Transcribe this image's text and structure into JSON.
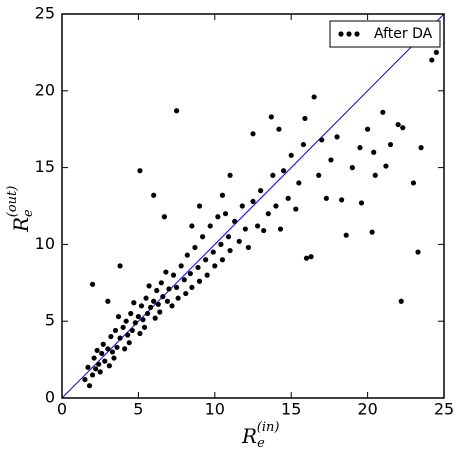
{
  "chart_data": {
    "type": "scatter",
    "xlabel": {
      "main": "R",
      "sub": "e",
      "sup": "(in)"
    },
    "ylabel": {
      "main": "R",
      "sub": "e",
      "sup": "(out)"
    },
    "xlim": [
      0,
      25
    ],
    "ylim": [
      0,
      25
    ],
    "xticks": [
      0,
      5,
      10,
      15,
      20,
      25
    ],
    "yticks": [
      0,
      5,
      10,
      15,
      20,
      25
    ],
    "legend": "upper right",
    "reference_line": {
      "x": [
        0,
        25
      ],
      "y": [
        0,
        25
      ],
      "color": "#0000ff"
    },
    "series": [
      {
        "name": "After DA",
        "color": "#000000",
        "x": [
          1.5,
          1.7,
          1.8,
          2,
          2.1,
          2.2,
          2.3,
          2.4,
          2.5,
          2.6,
          2.7,
          2.8,
          3,
          3.1,
          3.2,
          3.3,
          3.4,
          3.5,
          3.6,
          3.7,
          3.8,
          4,
          4.1,
          4.2,
          4.3,
          4.4,
          4.5,
          4.6,
          4.7,
          4.8,
          5,
          5.1,
          5.2,
          5.3,
          5.4,
          5.5,
          5.6,
          5.7,
          5.8,
          6,
          6.1,
          6.2,
          6.3,
          6.4,
          6.5,
          6.6,
          6.8,
          6.9,
          7,
          7.2,
          7.3,
          7.5,
          7.6,
          7.8,
          8,
          8.1,
          8.2,
          8.4,
          8.5,
          8.7,
          8.9,
          9,
          9.2,
          9.4,
          9.5,
          9.7,
          9.9,
          10,
          10.2,
          10.4,
          10.5,
          10.7,
          10.9,
          11,
          11.3,
          11.6,
          11.8,
          12,
          12.2,
          12.5,
          12.8,
          13,
          13.2,
          13.5,
          13.8,
          14,
          14.3,
          14.5,
          14.8,
          15,
          15.3,
          15.5,
          15.8,
          16,
          16.3,
          16.5,
          16.8,
          17,
          17.3,
          17.6,
          18,
          18.3,
          18.6,
          19,
          19.5,
          19.6,
          20,
          20.3,
          20.5,
          20.4,
          21,
          21.2,
          21.5,
          22,
          22.2,
          22.3,
          23,
          23.3,
          23.5,
          24.2,
          24.5,
          7.5,
          5.1,
          6,
          6.7,
          2,
          3.8,
          3,
          13.7,
          14.2,
          15.9,
          12.5,
          11,
          9,
          8.5,
          10.5
        ],
        "values": [
          1.2,
          2,
          0.8,
          1.5,
          2.6,
          1.9,
          3.1,
          2.2,
          1.7,
          2.9,
          3.5,
          2.4,
          3.2,
          2.1,
          4,
          3,
          2.6,
          4.4,
          3.3,
          5.3,
          3.9,
          4.6,
          3.2,
          5,
          4.1,
          3.6,
          5.5,
          4.4,
          6.2,
          4.9,
          5.3,
          4.2,
          6,
          5.1,
          4.6,
          6.5,
          5.5,
          7.3,
          5.9,
          6.3,
          5.2,
          7,
          6.1,
          5.6,
          7.5,
          6.6,
          8.2,
          6.3,
          7.1,
          6,
          8,
          7.2,
          6.5,
          8.6,
          7.7,
          6.8,
          9.3,
          8.1,
          7.2,
          9.8,
          8.5,
          7.6,
          10.5,
          9,
          8,
          11.2,
          9.5,
          8.6,
          11.8,
          10,
          9,
          12,
          10.5,
          9.6,
          11.5,
          10.2,
          12.5,
          11,
          9.8,
          12.8,
          11.2,
          13.5,
          10.9,
          12,
          14.5,
          12.5,
          11,
          14.8,
          13,
          15.8,
          12.3,
          14,
          16.5,
          9.1,
          9.2,
          19.6,
          14.5,
          16.8,
          13,
          15.5,
          17,
          12.9,
          10.6,
          15,
          16.3,
          12.7,
          17.5,
          10.8,
          14.5,
          16,
          18.6,
          15.1,
          16.5,
          17.8,
          6.3,
          17.6,
          14,
          9.5,
          16.3,
          22,
          22.5,
          18.7,
          14.8,
          13.2,
          11.8,
          7.4,
          8.6,
          6.3,
          18.3,
          17.5,
          18.2,
          17.2,
          14.5,
          12.5,
          11.2,
          13.2
        ]
      }
    ]
  }
}
